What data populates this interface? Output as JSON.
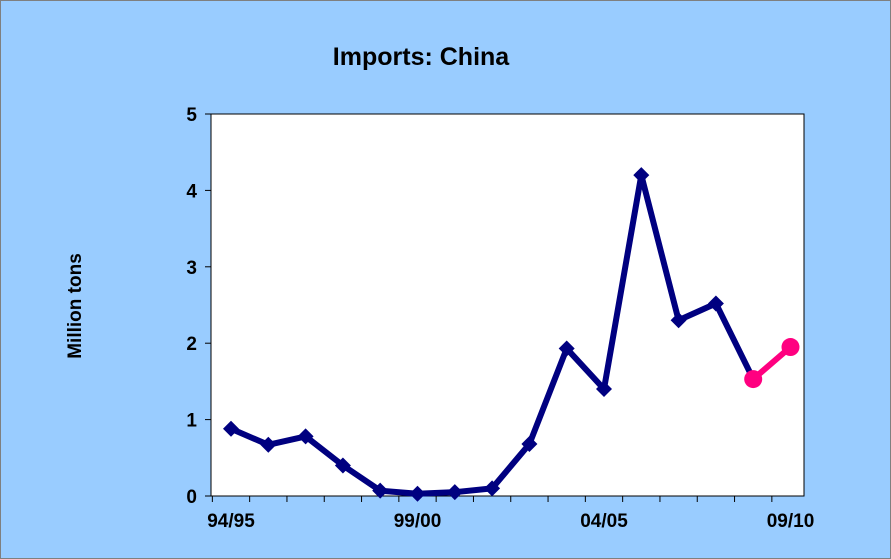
{
  "chart_data": {
    "type": "line",
    "title": "Imports: China",
    "xlabel": "",
    "ylabel": "Million tons",
    "ylim": [
      0,
      5
    ],
    "yticks": [
      0,
      1,
      2,
      3,
      4,
      5
    ],
    "x_tick_labels": [
      {
        "index": 0,
        "label": "94/95"
      },
      {
        "index": 5,
        "label": "99/00"
      },
      {
        "index": 10,
        "label": "04/05"
      },
      {
        "index": 15,
        "label": "09/10"
      }
    ],
    "categories": [
      "94/95",
      "95/96",
      "96/97",
      "97/98",
      "98/99",
      "99/00",
      "00/01",
      "01/02",
      "02/03",
      "03/04",
      "04/05",
      "05/06",
      "06/07",
      "07/08",
      "08/09",
      "09/10"
    ],
    "grid": false,
    "legend": "none",
    "series": [
      {
        "style": "actual",
        "color": "#000080",
        "marker": "diamond",
        "points": [
          {
            "x": "94/95",
            "y": 0.88
          },
          {
            "x": "95/96",
            "y": 0.67
          },
          {
            "x": "96/97",
            "y": 0.78
          },
          {
            "x": "97/98",
            "y": 0.4
          },
          {
            "x": "98/99",
            "y": 0.07
          },
          {
            "x": "99/00",
            "y": 0.03
          },
          {
            "x": "00/01",
            "y": 0.05
          },
          {
            "x": "01/02",
            "y": 0.1
          },
          {
            "x": "02/03",
            "y": 0.68
          },
          {
            "x": "03/04",
            "y": 1.93
          },
          {
            "x": "04/05",
            "y": 1.4
          },
          {
            "x": "05/06",
            "y": 4.2
          },
          {
            "x": "06/07",
            "y": 2.3
          },
          {
            "x": "07/08",
            "y": 2.52
          },
          {
            "x": "08/09",
            "y": 1.53
          }
        ]
      },
      {
        "style": "projection",
        "color": "#ff0080",
        "marker": "circle",
        "points": [
          {
            "x": "08/09",
            "y": 1.53
          },
          {
            "x": "09/10",
            "y": 1.95
          }
        ]
      }
    ]
  }
}
